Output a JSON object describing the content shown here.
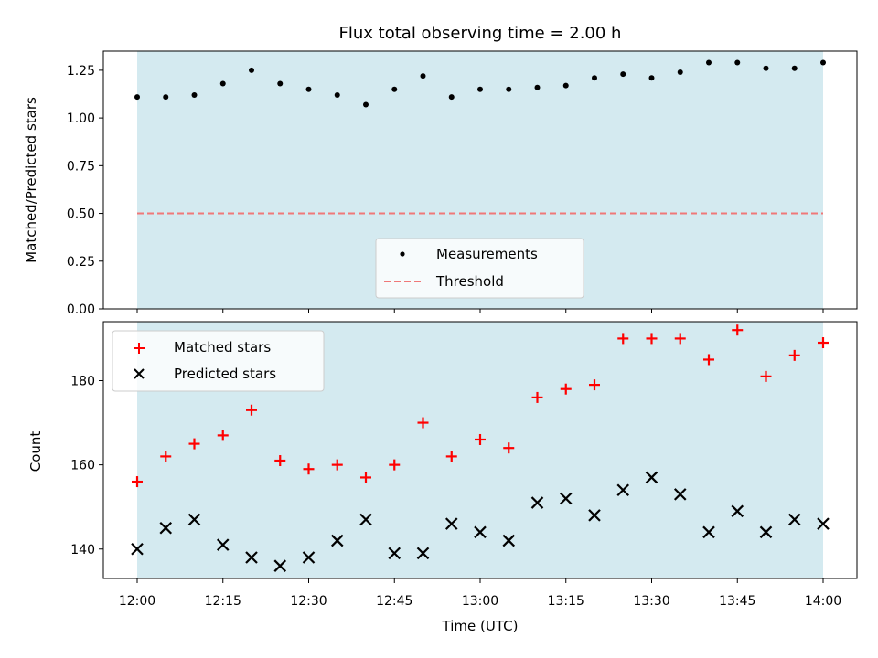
{
  "chart_data": [
    {
      "type": "scatter",
      "title": "Flux total observing time = 2.00 h",
      "xlabel": "",
      "ylabel": "Matched/Predicted stars",
      "ylim": [
        0,
        1.35
      ],
      "yticks": [
        "0.00",
        "0.25",
        "0.50",
        "0.75",
        "1.00",
        "1.25"
      ],
      "ytick_values": [
        0,
        0.25,
        0.5,
        0.75,
        1.0,
        1.25
      ],
      "x": [
        "12:00",
        "12:05",
        "12:10",
        "12:15",
        "12:20",
        "12:25",
        "12:30",
        "12:35",
        "12:40",
        "12:45",
        "12:50",
        "12:55",
        "13:00",
        "13:05",
        "13:10",
        "13:15",
        "13:20",
        "13:25",
        "13:30",
        "13:35",
        "13:40",
        "13:45",
        "13:50",
        "13:55",
        "14:00"
      ],
      "series": [
        {
          "name": "Measurements",
          "marker": "dot",
          "color": "#000000",
          "values": [
            1.11,
            1.11,
            1.12,
            1.18,
            1.25,
            1.18,
            1.15,
            1.12,
            1.07,
            1.15,
            1.22,
            1.11,
            1.15,
            1.15,
            1.16,
            1.17,
            1.21,
            1.23,
            1.21,
            1.24,
            1.29,
            1.29,
            1.26,
            1.26,
            1.29
          ]
        },
        {
          "name": "Threshold",
          "marker": "dashed-line",
          "color": "#f07878",
          "values": [
            0.5
          ]
        }
      ],
      "legend": "lower-center",
      "shaded_span": [
        "12:00",
        "14:00"
      ],
      "shade_color": "#d4eaf0",
      "grid": false
    },
    {
      "type": "scatter",
      "title": "",
      "xlabel": "Time (UTC)",
      "ylabel": "Count",
      "ylim": [
        133,
        194
      ],
      "yticks": [
        "140",
        "160",
        "180"
      ],
      "ytick_values": [
        140,
        160,
        180
      ],
      "xticks": [
        "12:00",
        "12:15",
        "12:30",
        "12:45",
        "13:00",
        "13:15",
        "13:30",
        "13:45",
        "14:00"
      ],
      "x": [
        "12:00",
        "12:05",
        "12:10",
        "12:15",
        "12:20",
        "12:25",
        "12:30",
        "12:35",
        "12:40",
        "12:45",
        "12:50",
        "12:55",
        "13:00",
        "13:05",
        "13:10",
        "13:15",
        "13:20",
        "13:25",
        "13:30",
        "13:35",
        "13:40",
        "13:45",
        "13:50",
        "13:55",
        "14:00"
      ],
      "series": [
        {
          "name": "Matched stars",
          "marker": "plus",
          "color": "#ff0000",
          "values": [
            156,
            162,
            165,
            167,
            173,
            161,
            159,
            160,
            157,
            160,
            170,
            162,
            166,
            164,
            176,
            178,
            179,
            190,
            190,
            190,
            185,
            192,
            181,
            186,
            189
          ]
        },
        {
          "name": "Predicted stars",
          "marker": "x",
          "color": "#000000",
          "values": [
            140,
            145,
            147,
            141,
            138,
            136,
            138,
            142,
            147,
            139,
            139,
            146,
            144,
            142,
            151,
            152,
            148,
            154,
            157,
            153,
            144,
            149,
            144,
            147,
            146
          ]
        }
      ],
      "legend": "top-left",
      "shaded_span": [
        "12:00",
        "14:00"
      ],
      "shade_color": "#d4eaf0",
      "grid": false
    }
  ]
}
